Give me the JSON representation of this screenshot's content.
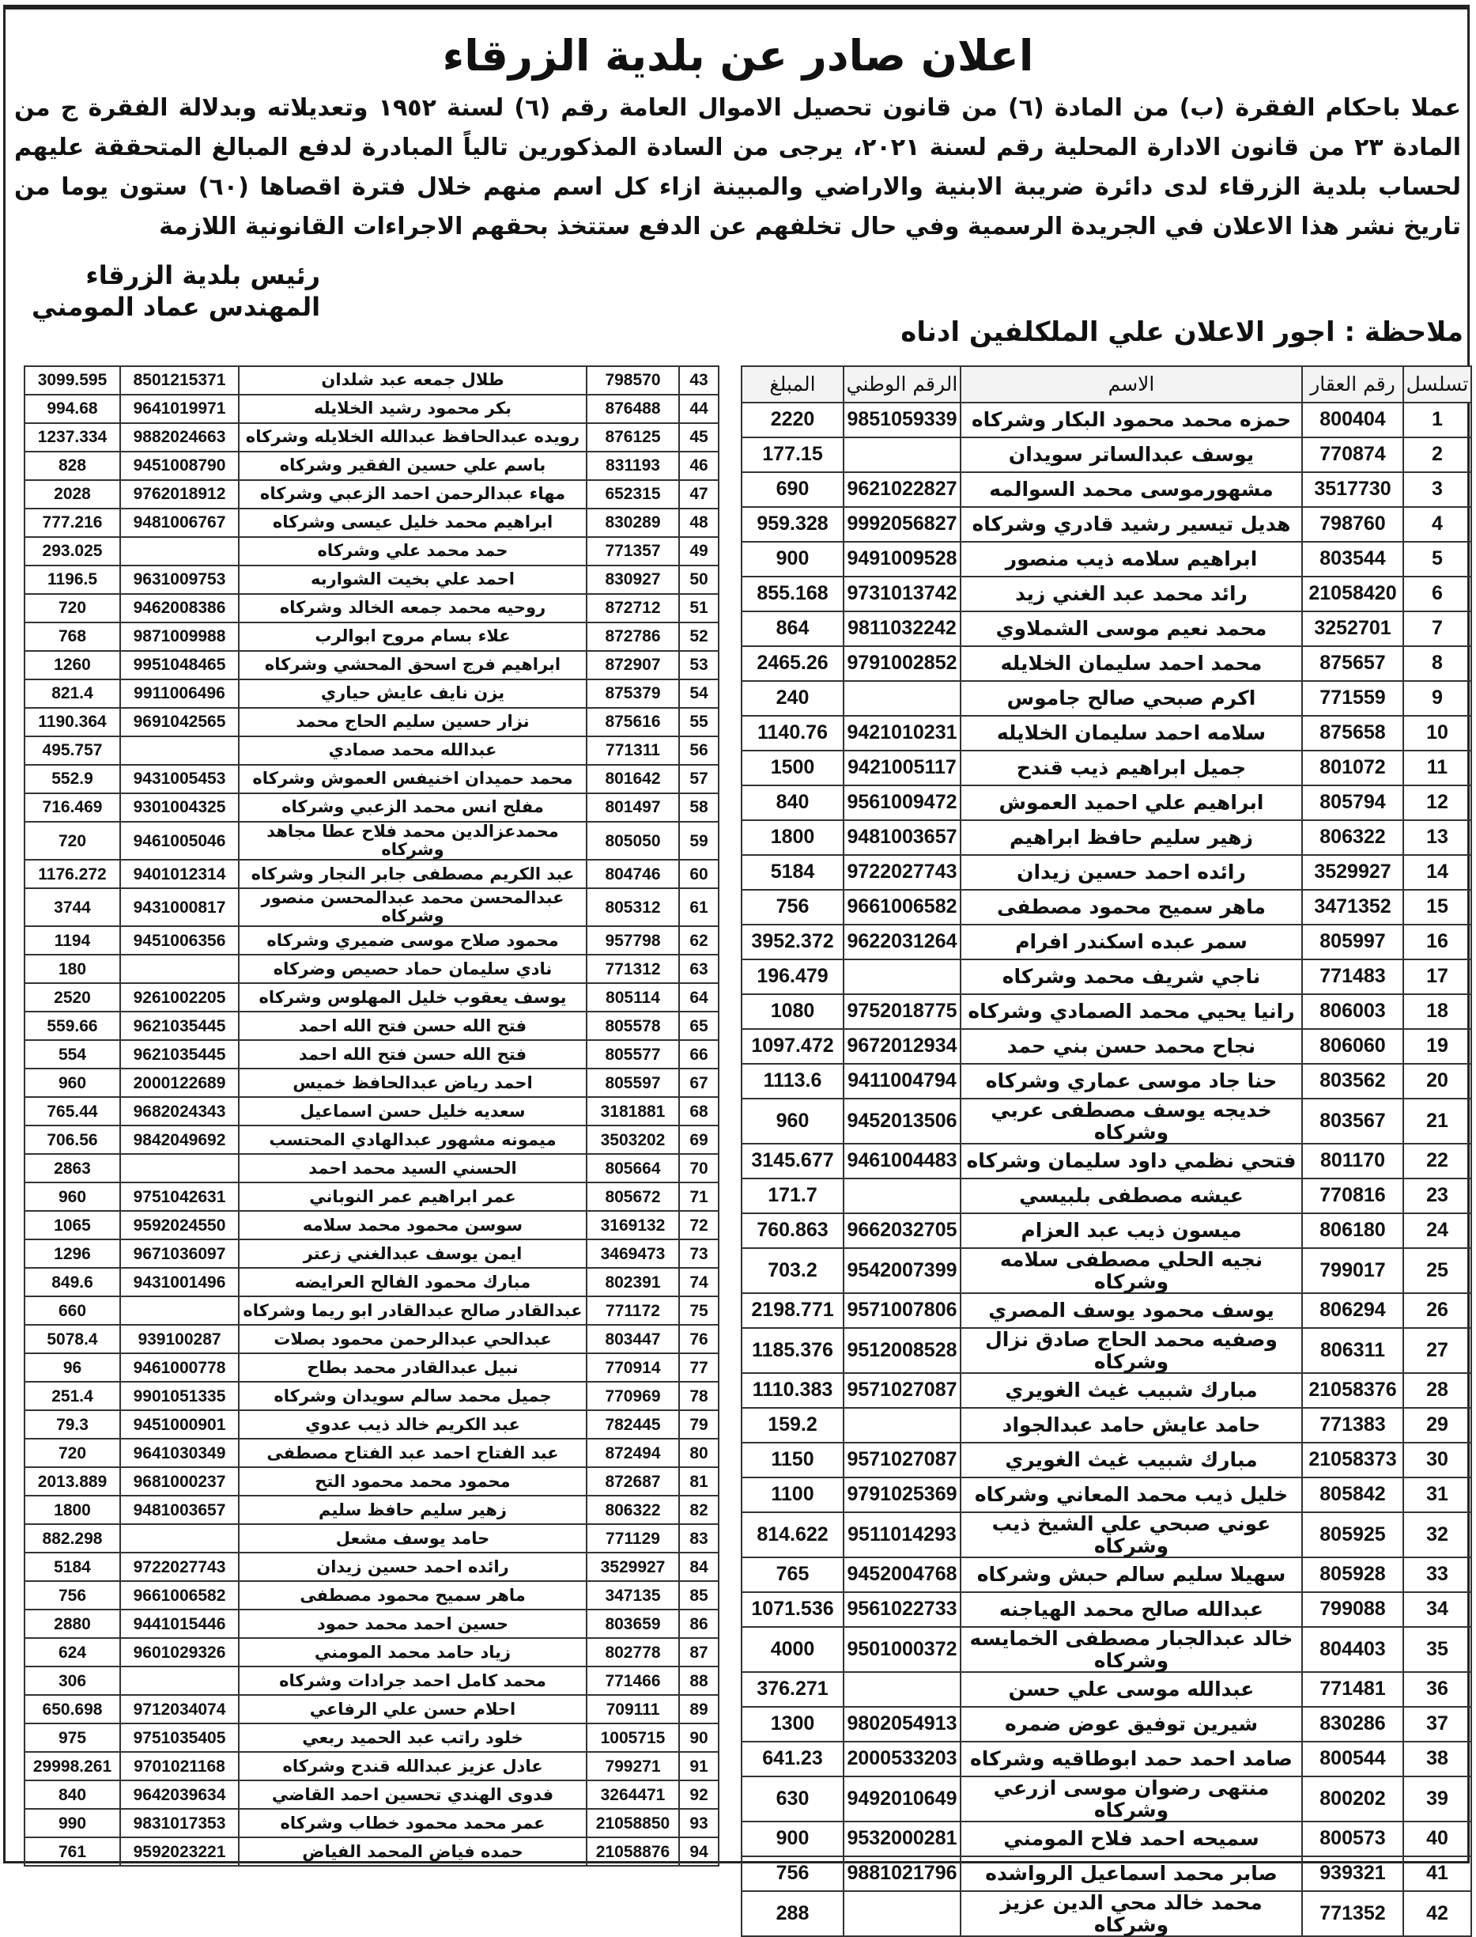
{
  "title": "اعلان صادر عن بلدية الزرقاء",
  "body": "عملا باحكام الفقرة (ب) من المادة (٦) من قانون تحصيل الاموال العامة رقم (٦) لسنة ١٩٥٢ وتعديلاته وبدلالة الفقرة ج من المادة ٢٣ من قانون الادارة المحلية رقم لسنة ٢٠٢١، يرجى من السادة المذكورين تالياً المبادرة لدفع المبالغ المتحققة عليهم لحساب بلدية الزرقاء لدى دائرة ضريبة الابنية والاراضي والمبينة ازاء كل اسم منهم خلال فترة اقصاها (٦٠) ستون يوما من تاريخ نشر هذا الاعلان في الجريدة الرسمية وفي حال تخلفهم عن الدفع ستتخذ بحقهم الاجراءات القانونية اللازمة",
  "signature": {
    "line1": "رئيس بلدية الزرقاء",
    "line2": "المهندس عماد المومني"
  },
  "note": "ملاحظة : اجور الاعلان علي الملكلفين ادناه",
  "columns": {
    "seq": "تسلسل",
    "property": "رقم العقار",
    "name": "الاسم",
    "national_id": "الرقم الوطني",
    "amount": "المبلغ"
  },
  "right_rows": [
    [
      "1",
      "800404",
      "حمزه محمد محمود البكار وشركاه",
      "9851059339",
      "2220"
    ],
    [
      "2",
      "770874",
      "يوسف عبدالساتر سويدان",
      "",
      "177.15"
    ],
    [
      "3",
      "3517730",
      "مشهورموسى محمد السوالمه",
      "9621022827",
      "690"
    ],
    [
      "4",
      "798760",
      "هديل تيسير رشيد قادري وشركاه",
      "9992056827",
      "959.328"
    ],
    [
      "5",
      "803544",
      "ابراهيم سلامه ذيب منصور",
      "9491009528",
      "900"
    ],
    [
      "6",
      "21058420",
      "رائد محمد عبد الغني زيد",
      "9731013742",
      "855.168"
    ],
    [
      "7",
      "3252701",
      "محمد نعيم موسى الشملاوي",
      "9811032242",
      "864"
    ],
    [
      "8",
      "875657",
      "محمد احمد سليمان الخلايله",
      "9791002852",
      "2465.26"
    ],
    [
      "9",
      "771559",
      "اكرم صبحي صالح جاموس",
      "",
      "240"
    ],
    [
      "10",
      "875658",
      "سلامه احمد سليمان الخلايله",
      "9421010231",
      "1140.76"
    ],
    [
      "11",
      "801072",
      "جميل ابراهيم ذيب  قندح",
      "9421005117",
      "1500"
    ],
    [
      "12",
      "805794",
      "ابراهيم علي احميد العموش",
      "9561009472",
      "840"
    ],
    [
      "13",
      "806322",
      "زهير سليم حافظ ابراهيم",
      "9481003657",
      "1800"
    ],
    [
      "14",
      "3529927",
      "رائده احمد حسين زيدان",
      "9722027743",
      "5184"
    ],
    [
      "15",
      "3471352",
      "ماهر سميح محمود مصطفى",
      "9661006582",
      "756"
    ],
    [
      "16",
      "805997",
      "سمر عبده اسكندر افرام",
      "9622031264",
      "3952.372"
    ],
    [
      "17",
      "771483",
      "ناجي شريف محمد وشركاه",
      "",
      "196.479"
    ],
    [
      "18",
      "806003",
      "رانيا يحيي محمد الصمادي وشركاه",
      "9752018775",
      "1080"
    ],
    [
      "19",
      "806060",
      "نجاح محمد حسن بني حمد",
      "9672012934",
      "1097.472"
    ],
    [
      "20",
      "803562",
      "حنا جاد موسى عماري وشركاه",
      "9411004794",
      "1113.6"
    ],
    [
      "21",
      "803567",
      "خديجه يوسف  مصطفى عربي وشركاه",
      "9452013506",
      "960"
    ],
    [
      "22",
      "801170",
      "فتحي نظمي داود سليمان وشركاه",
      "9461004483",
      "3145.677"
    ],
    [
      "23",
      "770816",
      "عيشه مصطفى بلبيسي",
      "",
      "171.7"
    ],
    [
      "24",
      "806180",
      "ميسون ذيب عبد العزام",
      "9662032705",
      "760.863"
    ],
    [
      "25",
      "799017",
      "نجيه الحلي مصطفى سلامه وشركاه",
      "9542007399",
      "703.2"
    ],
    [
      "26",
      "806294",
      "يوسف محمود يوسف المصري",
      "9571007806",
      "2198.771"
    ],
    [
      "27",
      "806311",
      "وصفيه محمد الحاج صادق نزال وشركاه",
      "9512008528",
      "1185.376"
    ],
    [
      "28",
      "21058376",
      "مبارك شبيب غيث الغويري",
      "9571027087",
      "1110.383"
    ],
    [
      "29",
      "771383",
      "حامد عايش حامد عبدالجواد",
      "",
      "159.2"
    ],
    [
      "30",
      "21058373",
      "مبارك شبيب غيث الغويري",
      "9571027087",
      "1150"
    ],
    [
      "31",
      "805842",
      "خليل ذيب محمد المعاني وشركاه",
      "9791025369",
      "1100"
    ],
    [
      "32",
      "805925",
      "عوني صبحي علي الشيخ ذيب وشركاه",
      "9511014293",
      "814.622"
    ],
    [
      "33",
      "805928",
      "سهيلا سليم سالم حبش وشركاه",
      "9452004768",
      "765"
    ],
    [
      "34",
      "799088",
      "عبدالله صالح محمد الهياجنه",
      "9561022733",
      "1071.536"
    ],
    [
      "35",
      "804403",
      "خالد عبدالجبار مصطفى الخمايسه وشركاه",
      "9501000372",
      "4000"
    ],
    [
      "36",
      "771481",
      "عبدالله موسى علي حسن",
      "",
      "376.271"
    ],
    [
      "37",
      "830286",
      "شيرين توفيق عوض ضمره",
      "9802054913",
      "1300"
    ],
    [
      "38",
      "800544",
      "صامد احمد حمد ابوطاقيه وشركاه",
      "2000533203",
      "641.23"
    ],
    [
      "39",
      "800202",
      "منتهى رضوان موسى ازرعي وشركاه",
      "9492010649",
      "630"
    ],
    [
      "40",
      "800573",
      "سميحه احمد فلاح المومني",
      "9532000281",
      "900"
    ],
    [
      "41",
      "939321",
      "صابر محمد اسماعيل الرواشده",
      "9881021796",
      "756"
    ],
    [
      "42",
      "771352",
      "محمد خالد محي الدين عزيز وشركاه",
      "",
      "288"
    ]
  ],
  "left_rows": [
    [
      "43",
      "798570",
      "طلال جمعه عبد شلدان",
      "8501215371",
      "3099.595"
    ],
    [
      "44",
      "876488",
      "بكر محمود رشيد الخلايله",
      "9641019971",
      "994.68"
    ],
    [
      "45",
      "876125",
      "رويده عبدالحافظ عبدالله الخلايله وشركاه",
      "9882024663",
      "1237.334"
    ],
    [
      "46",
      "831193",
      "باسم علي حسين الفقير وشركاه",
      "9451008790",
      "828"
    ],
    [
      "47",
      "652315",
      "مهاء عبدالرحمن احمد الزعبي وشركاه",
      "9762018912",
      "2028"
    ],
    [
      "48",
      "830289",
      "ابراهيم محمد خليل عيسى وشركاه",
      "9481006767",
      "777.216"
    ],
    [
      "49",
      "771357",
      "حمد محمد علي وشركاه",
      "",
      "293.025"
    ],
    [
      "50",
      "830927",
      "احمد علي بخيت الشواربه",
      "9631009753",
      "1196.5"
    ],
    [
      "51",
      "872712",
      "روحيه محمد جمعه الخالد وشركاه",
      "9462008386",
      "720"
    ],
    [
      "52",
      "872786",
      "علاء بسام مروح ابوالرب",
      "9871009988",
      "768"
    ],
    [
      "53",
      "872907",
      "ابراهيم فرج اسحق المحشي وشركاه",
      "9951048465",
      "1260"
    ],
    [
      "54",
      "875379",
      "يزن نايف عايش حياري",
      "9911006496",
      "821.4"
    ],
    [
      "55",
      "875616",
      "نزار حسين سليم الحاج محمد",
      "9691042565",
      "1190.364"
    ],
    [
      "56",
      "771311",
      "عبدالله محمد صمادي",
      "",
      "495.757"
    ],
    [
      "57",
      "801642",
      "محمد حميدان اخنيفس العموش وشركاه",
      "9431005453",
      "552.9"
    ],
    [
      "58",
      "801497",
      "مفلح انس محمد الزعبي وشركاه",
      "9301004325",
      "716.469"
    ],
    [
      "59",
      "805050",
      "محمدعزالدين محمد فلاح عطا مجاهد وشركاه",
      "9461005046",
      "720"
    ],
    [
      "60",
      "804746",
      "عبد الكريم مصطفى جابر النجار وشركاه",
      "9401012314",
      "1176.272"
    ],
    [
      "61",
      "805312",
      "عبدالمحسن محمد عبدالمحسن منصور وشركاه",
      "9431000817",
      "3744"
    ],
    [
      "62",
      "957798",
      "محمود صلاح موسى ضميري وشركاه",
      "9451006356",
      "1194"
    ],
    [
      "63",
      "771312",
      "نادي سليمان حماد حصيص وضركاه",
      "",
      "180"
    ],
    [
      "64",
      "805114",
      "يوسف يعقوب خليل المهلوس وشركاه",
      "9261002205",
      "2520"
    ],
    [
      "65",
      "805578",
      "فتح الله حسن فتح الله احمد",
      "9621035445",
      "559.66"
    ],
    [
      "66",
      "805577",
      "فتح الله حسن فتح الله احمد",
      "9621035445",
      "554"
    ],
    [
      "67",
      "805597",
      "احمد رياض عبدالحافظ خميس",
      "2000122689",
      "960"
    ],
    [
      "68",
      "3181881",
      "سعديه خليل حسن اسماعيل",
      "9682024343",
      "765.44"
    ],
    [
      "69",
      "3503202",
      "ميمونه مشهور عبدالهادي المحتسب",
      "9842049692",
      "706.56"
    ],
    [
      "70",
      "805664",
      "الحسني السيد محمد احمد",
      "",
      "2863"
    ],
    [
      "71",
      "805672",
      "عمر ابراهيم عمر النوباني",
      "9751042631",
      "960"
    ],
    [
      "72",
      "3169132",
      "سوسن محمود  محمد سلامه",
      "9592024550",
      "1065"
    ],
    [
      "73",
      "3469473",
      "ايمن يوسف عبدالغني زعتر",
      "9671036097",
      "1296"
    ],
    [
      "74",
      "802391",
      "مبارك محمود الفالح العرايضه",
      "9431001496",
      "849.6"
    ],
    [
      "75",
      "771172",
      "عبدالقادر صالح عبدالقادر ابو ريما وشركاه",
      "",
      "660"
    ],
    [
      "76",
      "803447",
      "عبدالحي عبدالرحمن محمود بصلات",
      "939100287",
      "5078.4"
    ],
    [
      "77",
      "770914",
      "نبيل عبدالقادر محمد بطاح",
      "9461000778",
      "96"
    ],
    [
      "78",
      "770969",
      "جميل محمد سالم سويدان وشركاه",
      "9901051335",
      "251.4"
    ],
    [
      "79",
      "782445",
      "عبد الكريم خالد ذيب عدوي",
      "9451000901",
      "79.3"
    ],
    [
      "80",
      "872494",
      "عبد الفتاح احمد عبد الفتاح مصطفى",
      "9641030349",
      "720"
    ],
    [
      "81",
      "872687",
      "محمود محمد محمود التح",
      "9681000237",
      "2013.889"
    ],
    [
      "82",
      "806322",
      "زهير سليم حافظ سليم",
      "9481003657",
      "1800"
    ],
    [
      "83",
      "771129",
      "حامد يوسف مشعل",
      "",
      "882.298"
    ],
    [
      "84",
      "3529927",
      "رائده احمد حسين زيدان",
      "9722027743",
      "5184"
    ],
    [
      "85",
      "347135",
      "ماهر سميح محمود مصطفى",
      "9661006582",
      "756"
    ],
    [
      "86",
      "803659",
      "حسين احمد محمد حمود",
      "9441015446",
      "2880"
    ],
    [
      "87",
      "802778",
      "زياد حامد محمد المومني",
      "9601029326",
      "624"
    ],
    [
      "88",
      "771466",
      "محمد كامل احمد جرادات وشركاه",
      "",
      "306"
    ],
    [
      "89",
      "709111",
      "احلام حسن علي الرفاعي",
      "9712034074",
      "650.698"
    ],
    [
      "90",
      "1005715",
      "خلود راتب عبد الحميد ربعي",
      "9751035405",
      "975"
    ],
    [
      "91",
      "799271",
      "عادل عزيز عبدالله قندح وشركاه",
      "9701021168",
      "29998.261"
    ],
    [
      "92",
      "3264471",
      "فدوى الهندي تحسين احمد القاضي",
      "9642039634",
      "840"
    ],
    [
      "93",
      "21058850",
      "عمر محمد محمود خطاب وشركاه",
      "9831017353",
      "990"
    ],
    [
      "94",
      "21058876",
      "حمده فياض المحمد الفياض",
      "9592023221",
      "761"
    ]
  ]
}
